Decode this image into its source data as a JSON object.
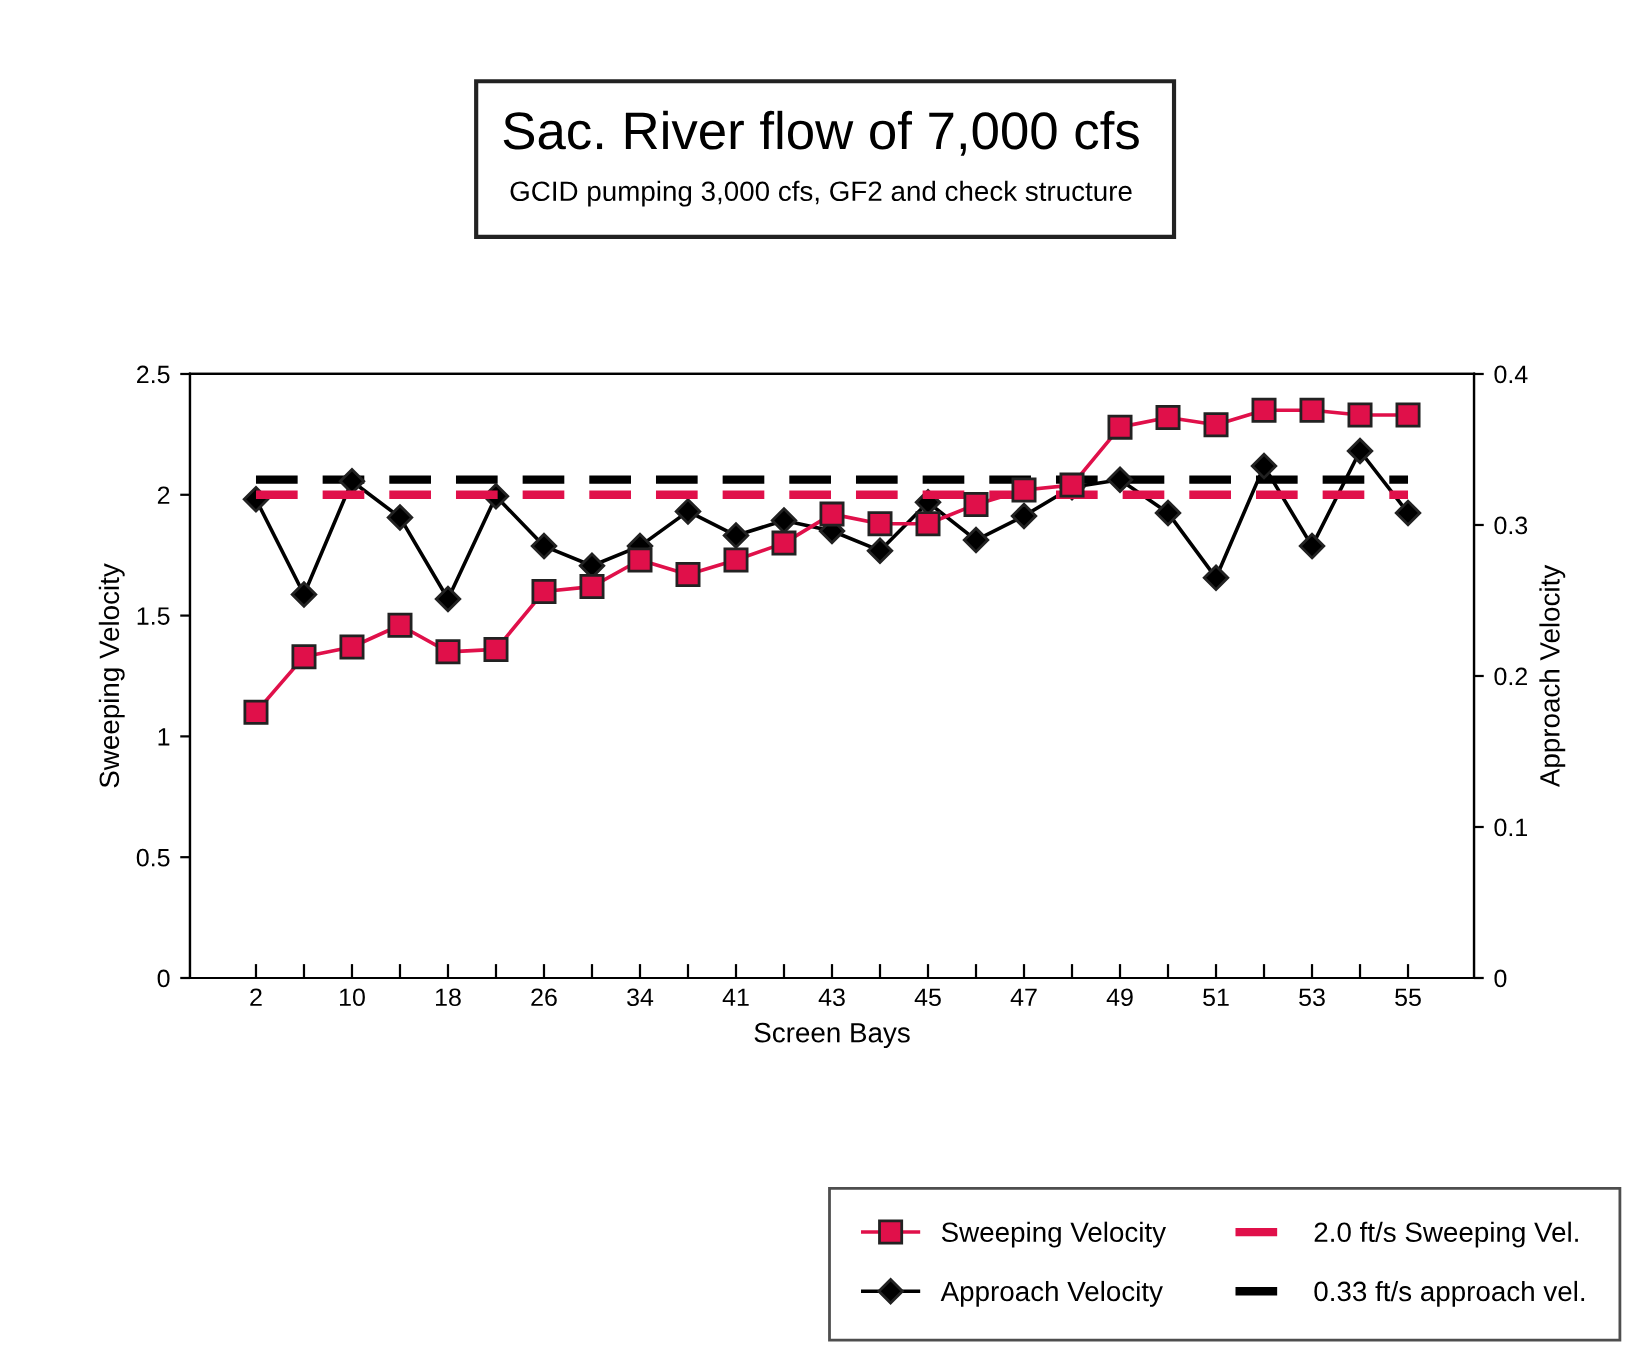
{
  "chart_data": {
    "type": "line",
    "title": "Sac. River flow of 7,000 cfs",
    "subtitle": "GCID pumping 3,000 cfs, GF2 and check structure",
    "xlabel": "Screen Bays",
    "ylabel": "Sweeping Velocity",
    "y2label": "Approach Velocity",
    "categories": [
      "2",
      null,
      "10",
      null,
      "18",
      null,
      "26",
      null,
      "34",
      null,
      "41",
      null,
      "43",
      null,
      "45",
      null,
      "47",
      null,
      "49",
      null,
      "51",
      null,
      "53",
      null,
      "55"
    ],
    "series": [
      {
        "name": "Sweeping Velocity",
        "color": "#e0104a",
        "marker": "square",
        "line_style": "solid",
        "values": [
          1.1,
          1.33,
          1.37,
          1.46,
          1.35,
          1.36,
          1.6,
          1.62,
          1.73,
          1.67,
          1.73,
          1.8,
          1.92,
          1.88,
          1.88,
          1.96,
          2.02,
          2.04,
          2.28,
          2.32,
          2.29,
          2.35,
          2.35,
          2.33,
          2.33
        ]
      },
      {
        "name": "Approach Velocity",
        "color": "#000000",
        "marker": "diamond",
        "line_style": "solid",
        "axis": "y2",
        "values": [
          0.317,
          0.254,
          0.329,
          0.305,
          0.251,
          0.319,
          0.286,
          0.273,
          0.286,
          0.309,
          0.293,
          0.303,
          0.296,
          0.283,
          0.315,
          0.29,
          0.306,
          0.325,
          0.33,
          0.308,
          0.265,
          0.339,
          0.286,
          0.349,
          0.308
        ]
      },
      {
        "name": "2.0 ft/s Sweeping Vel.",
        "color": "#e0104a",
        "marker": "none",
        "line_style": "dashed",
        "values": [
          2.0,
          2.0,
          2.0,
          2.0,
          2.0,
          2.0,
          2.0,
          2.0,
          2.0,
          2.0,
          2.0,
          2.0,
          2.0,
          2.0,
          2.0,
          2.0,
          2.0,
          2.0,
          2.0,
          2.0,
          2.0,
          2.0,
          2.0,
          2.0,
          2.0
        ]
      },
      {
        "name": "0.33 ft/s approach vel.",
        "color": "#000000",
        "marker": "none",
        "line_style": "dashed",
        "axis": "y2",
        "values": [
          0.33,
          0.33,
          0.33,
          0.33,
          0.33,
          0.33,
          0.33,
          0.33,
          0.33,
          0.33,
          0.33,
          0.33,
          0.33,
          0.33,
          0.33,
          0.33,
          0.33,
          0.33,
          0.33,
          0.33,
          0.33,
          0.33,
          0.33,
          0.33,
          0.33
        ]
      }
    ],
    "ylim": [
      0,
      2.5
    ],
    "yticks": [
      0,
      0.5,
      1,
      1.5,
      2,
      2.5
    ],
    "y2lim": [
      0,
      0.4
    ],
    "y2ticks": [
      0,
      0.1,
      0.2,
      0.3,
      0.4
    ],
    "grid": false,
    "legend": "bottom right"
  }
}
